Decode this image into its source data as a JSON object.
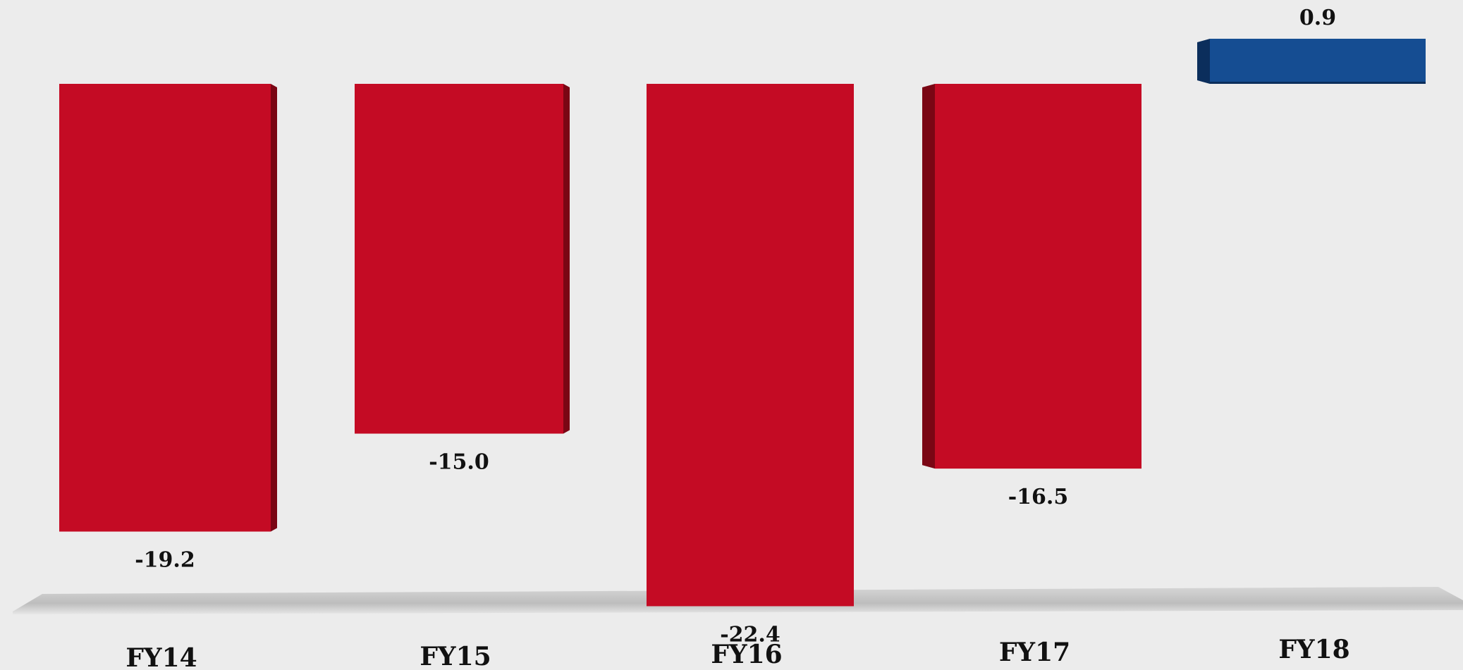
{
  "chart_data": {
    "type": "bar",
    "categories": [
      "FY14",
      "FY15",
      "FY16",
      "FY17",
      "FY18"
    ],
    "values": [
      -19.2,
      -15.0,
      -22.4,
      -16.5,
      0.9
    ],
    "value_labels": [
      "-19.2",
      "-15.0",
      "-22.4",
      "-16.5",
      "0.9"
    ],
    "title": "",
    "xlabel": "",
    "ylabel": "",
    "ylim": [
      -22.4,
      0.9
    ],
    "grid": false,
    "legend": "none",
    "colors": {
      "negative": "#c40b24",
      "negative_side": "#7a0614",
      "positive": "#154d92",
      "positive_side": "#0b2e5c",
      "background": "#ececec",
      "floor": "#b9b9b9"
    }
  }
}
